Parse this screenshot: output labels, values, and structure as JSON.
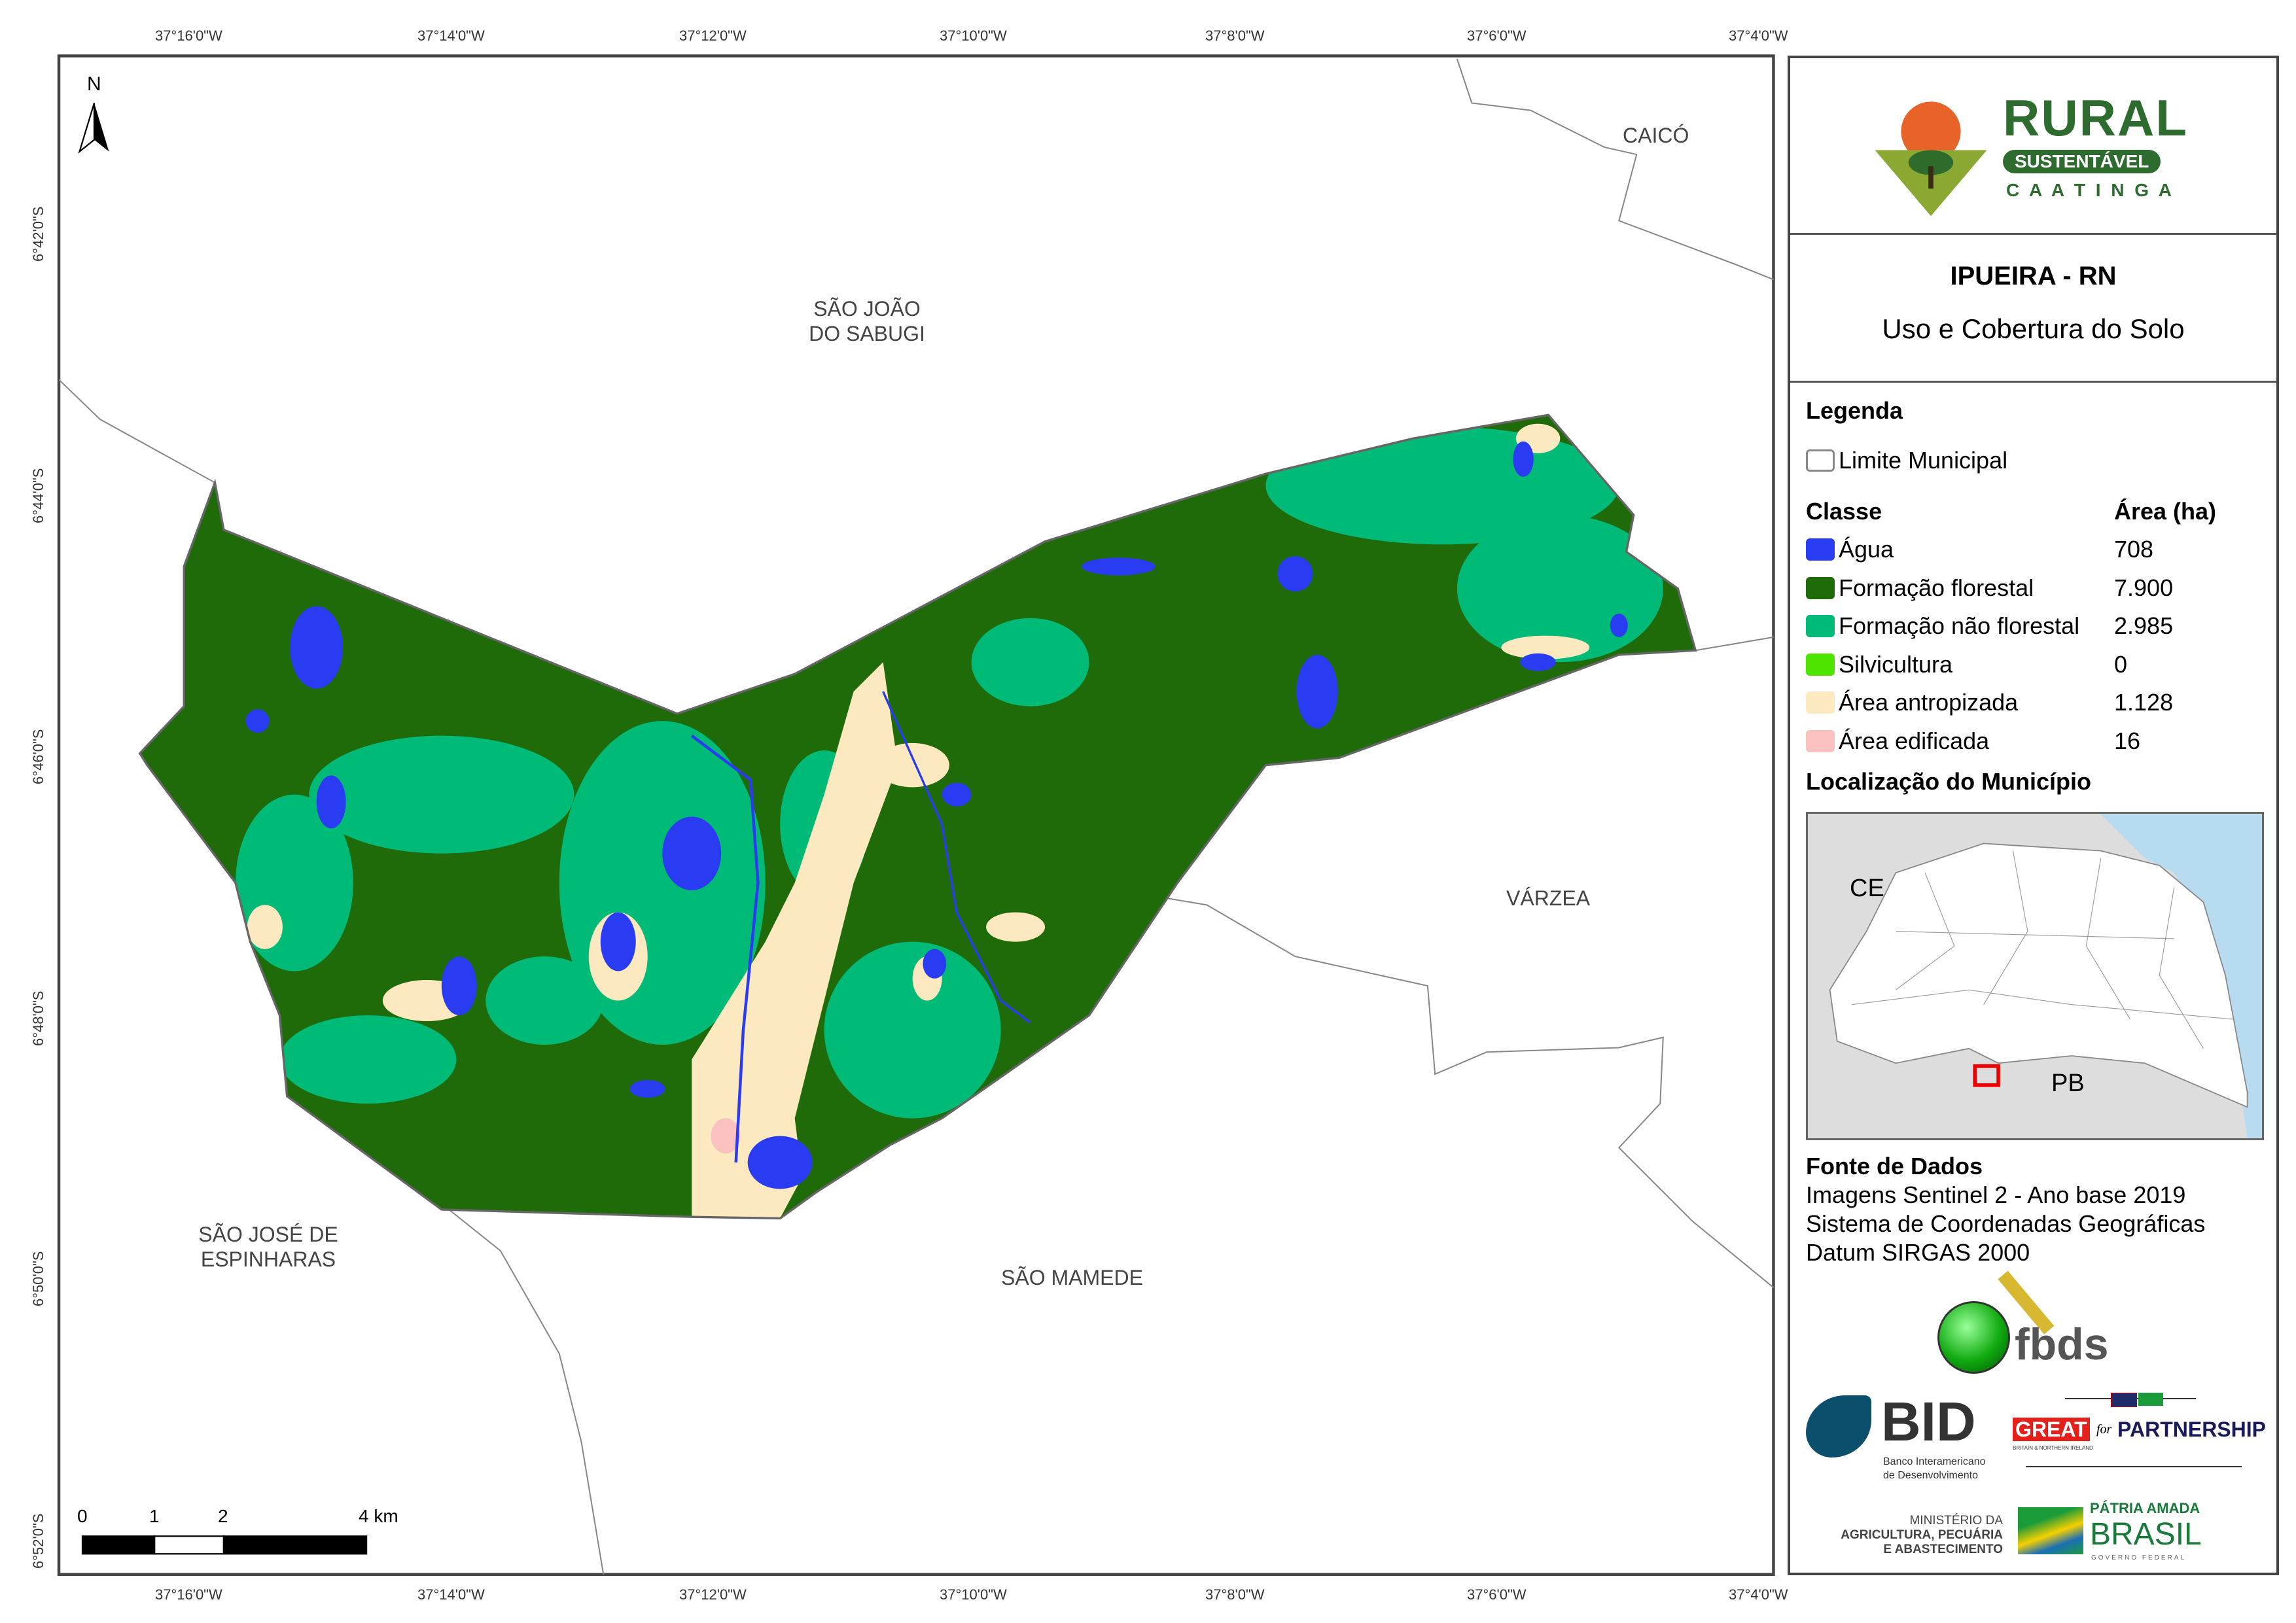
{
  "graticule": {
    "longitudes": [
      "37°16'0\"W",
      "37°14'0\"W",
      "37°12'0\"W",
      "37°10'0\"W",
      "37°8'0\"W",
      "37°6'0\"W",
      "37°4'0\"W"
    ],
    "latitudes": [
      "6°42'0\"S",
      "6°44'0\"S",
      "6°46'0\"S",
      "6°48'0\"S",
      "6°50'0\"S",
      "6°52'0\"S"
    ]
  },
  "north_arrow": "N",
  "places": {
    "caico": "CAICÓ",
    "sao_joao_1": "SÃO JOÃO",
    "sao_joao_2": "DO SABUGI",
    "varzea": "VÁRZEA",
    "sao_jose_1": "SÃO JOSÉ DE",
    "sao_jose_2": "ESPINHARAS",
    "sao_mamede": "SÃO MAMEDE"
  },
  "scale_bar": {
    "labels": [
      "0",
      "1",
      "2",
      "4 km"
    ]
  },
  "logo": {
    "title": "RURAL",
    "subtitle": "SUSTENTÁVEL",
    "tagline": "C A A T I N G A"
  },
  "title": {
    "main": "IPUEIRA - RN",
    "sub": "Uso e Cobertura do Solo"
  },
  "legend": {
    "heading": "Legenda",
    "boundary_label": "Limite Municipal",
    "class_header": "Classe",
    "area_header": "Área (ha)",
    "classes": [
      {
        "label": "Água",
        "area": "708",
        "color": "#2a3cf2"
      },
      {
        "label": "Formação florestal",
        "area": "7.900",
        "color": "#1f6b0a"
      },
      {
        "label": "Formação não florestal",
        "area": "2.985",
        "color": "#00bb77"
      },
      {
        "label": "Silvicultura",
        "area": "0",
        "color": "#4fe300"
      },
      {
        "label": "Área antropizada",
        "area": "1.128",
        "color": "#fde9c0"
      },
      {
        "label": "Área edificada",
        "area": "16",
        "color": "#fbc0c0"
      }
    ]
  },
  "location": {
    "heading": "Localização do Município",
    "ce": "CE",
    "pb": "PB"
  },
  "source": {
    "heading": "Fonte de Dados",
    "lines": [
      "Imagens Sentinel 2 - Ano base 2019",
      "Sistema de Coordenadas Geográficas",
      "Datum SIRGAS 2000"
    ]
  },
  "partners": {
    "fbds": "fbds",
    "bid": "BID",
    "bid_sub1": "Banco Interamericano",
    "bid_sub2": "de Desenvolvimento",
    "great": "GREAT",
    "great_sub": "BRITAIN & NORTHERN IRELAND",
    "for": "for",
    "partnership": "PARTNERSHIP",
    "min1": "MINISTÉRIO DA",
    "min2": "AGRICULTURA, PECUÁRIA",
    "min3": "E ABASTECIMENTO",
    "patria": "PÁTRIA AMADA",
    "brasil": "BRASIL",
    "gov": "GOVERNO FEDERAL"
  }
}
